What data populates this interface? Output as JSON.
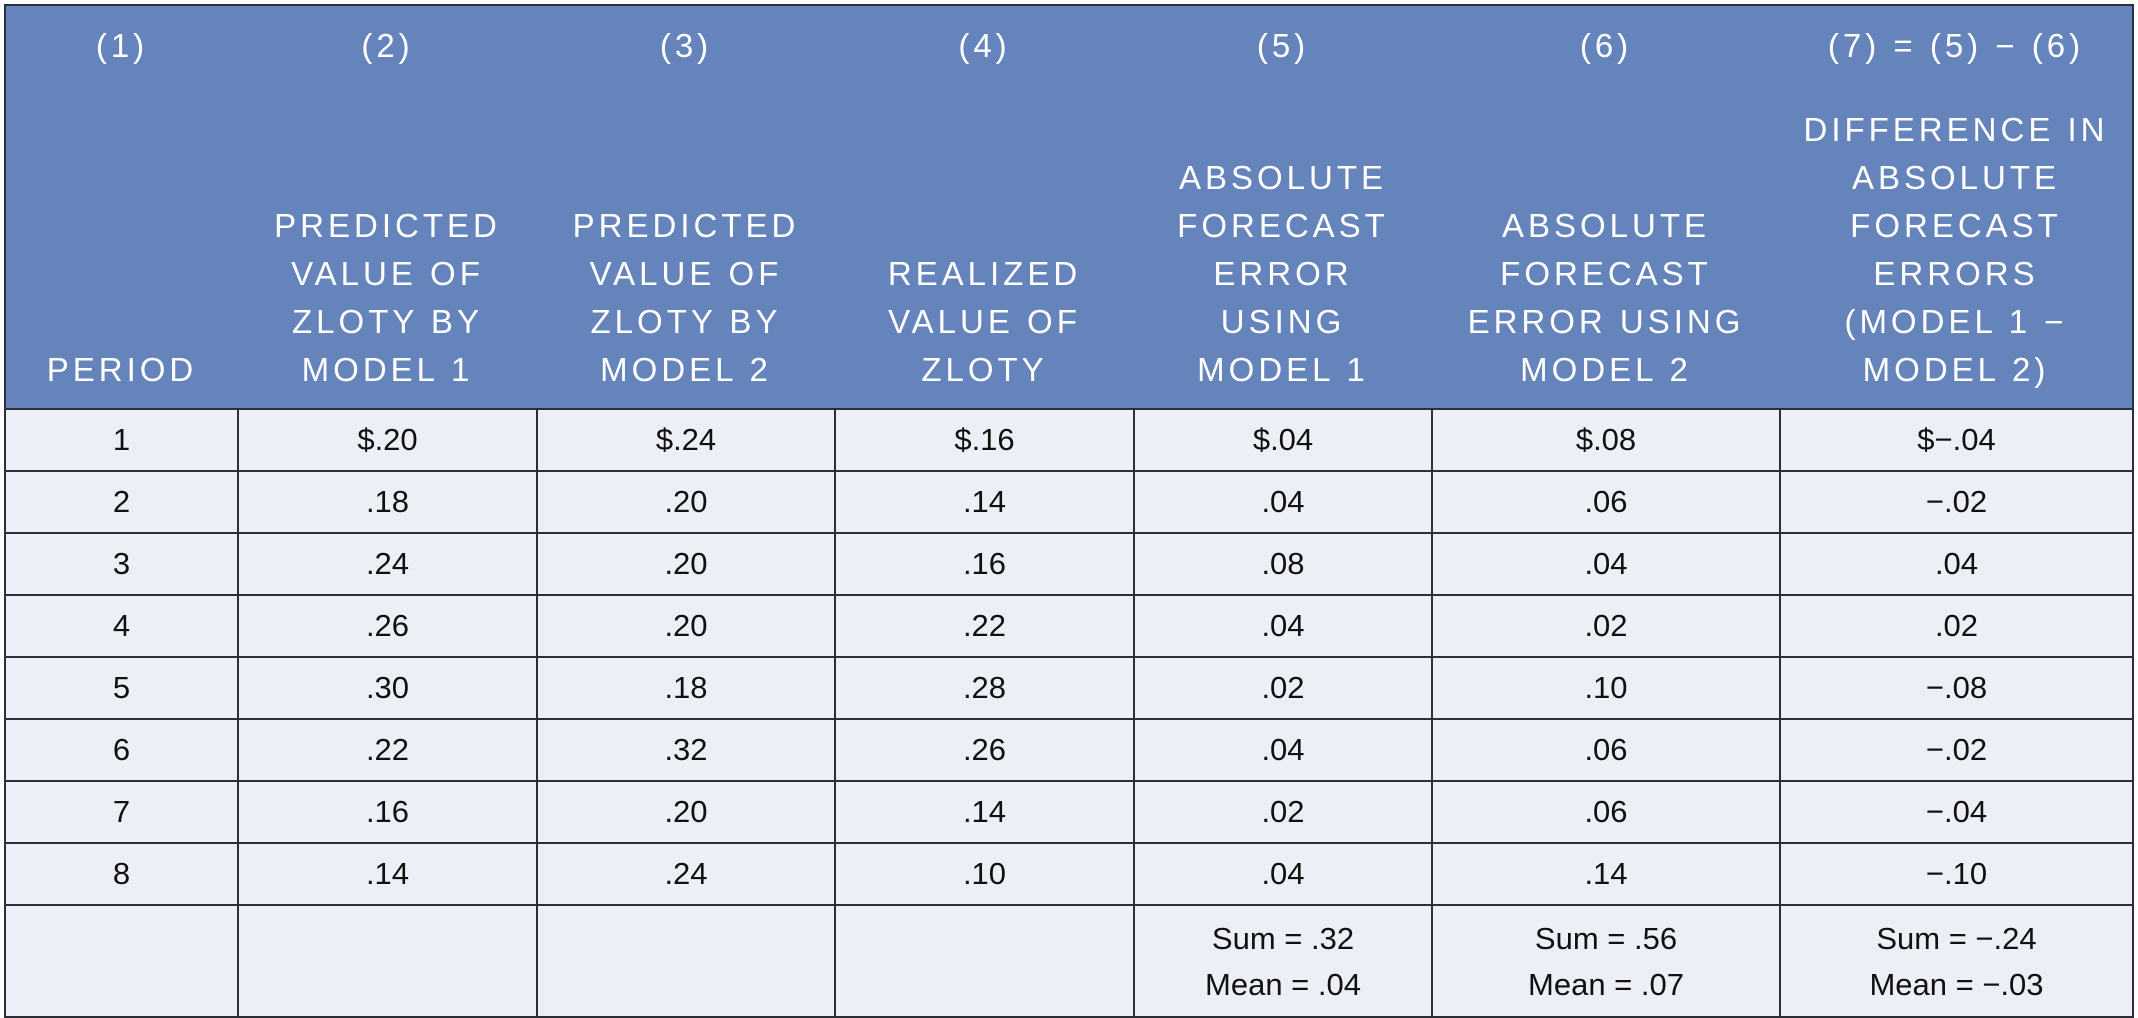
{
  "table": {
    "column_numbers": [
      "(1)",
      "(2)",
      "(3)",
      "(4)",
      "(5)",
      "(6)",
      "(7) = (5) − (6)"
    ],
    "column_headers": [
      "PERIOD",
      "PREDICTED\nVALUE OF\nZLOTY BY\nMODEL 1",
      "PREDICTED\nVALUE OF\nZLOTY BY\nMODEL 2",
      "REALIZED\nVALUE OF\nZLOTY",
      "ABSOLUTE\nFORECAST\nERROR\nUSING\nMODEL 1",
      "ABSOLUTE\nFORECAST\nERROR USING\nMODEL 2",
      "DIFFERENCE IN\nABSOLUTE\nFORECAST\nERRORS\n(MODEL 1 −\nMODEL 2)"
    ],
    "rows": [
      [
        "1",
        "$.20",
        "$.24",
        "$.16",
        "$.04",
        "$.08",
        "$−.04"
      ],
      [
        "2",
        ".18",
        ".20",
        ".14",
        ".04",
        ".06",
        "−.02"
      ],
      [
        "3",
        ".24",
        ".20",
        ".16",
        ".08",
        ".04",
        ".04"
      ],
      [
        "4",
        ".26",
        ".20",
        ".22",
        ".04",
        ".02",
        ".02"
      ],
      [
        "5",
        ".30",
        ".18",
        ".28",
        ".02",
        ".10",
        "−.08"
      ],
      [
        "6",
        ".22",
        ".32",
        ".26",
        ".04",
        ".06",
        "−.02"
      ],
      [
        "7",
        ".16",
        ".20",
        ".14",
        ".02",
        ".06",
        "−.04"
      ],
      [
        "8",
        ".14",
        ".24",
        ".10",
        ".04",
        ".14",
        "−.10"
      ]
    ],
    "totals": [
      "",
      "",
      "",
      "",
      "Sum = .32\nMean = .04",
      "Sum = .56\nMean = .07",
      "Sum = −.24\nMean = −.03"
    ]
  },
  "colors": {
    "header_bg": "#6584bb",
    "header_text": "#ffffff",
    "cell_bg": "#eceff5",
    "border": "#2a2f3a"
  }
}
